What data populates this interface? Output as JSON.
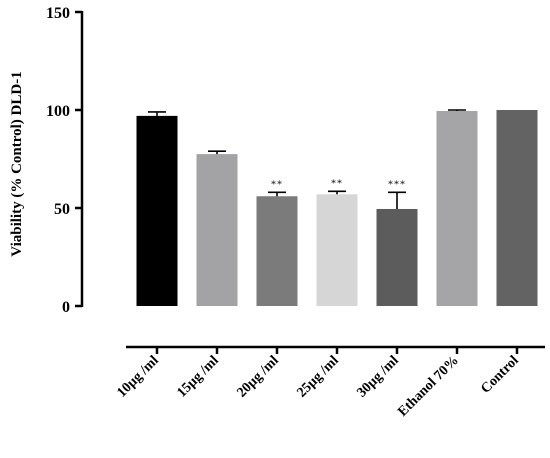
{
  "chart_data": {
    "type": "bar",
    "title": "",
    "xlabel": "",
    "ylabel": "Viability (% Control) DLD-1",
    "ylim": [
      0,
      150
    ],
    "yticks": [
      0,
      50,
      100,
      150
    ],
    "grid": false,
    "categories": [
      "10µg /ml",
      "15µg /ml",
      "20µg /ml",
      "25µg /ml",
      "30µg /ml",
      "Ethanol 70%",
      "Control"
    ],
    "values": [
      97,
      77.5,
      56,
      57,
      49.5,
      99.5,
      100
    ],
    "errors": [
      2,
      1.5,
      2,
      1.5,
      8.5,
      0.5,
      0
    ],
    "significance": [
      "",
      "",
      "**",
      "**",
      "***",
      "",
      ""
    ],
    "colors": [
      "#000000",
      "#a3a3a6",
      "#7b7b7b",
      "#d6d6d6",
      "#5c5c5c",
      "#a5a5a8",
      "#636363"
    ]
  }
}
